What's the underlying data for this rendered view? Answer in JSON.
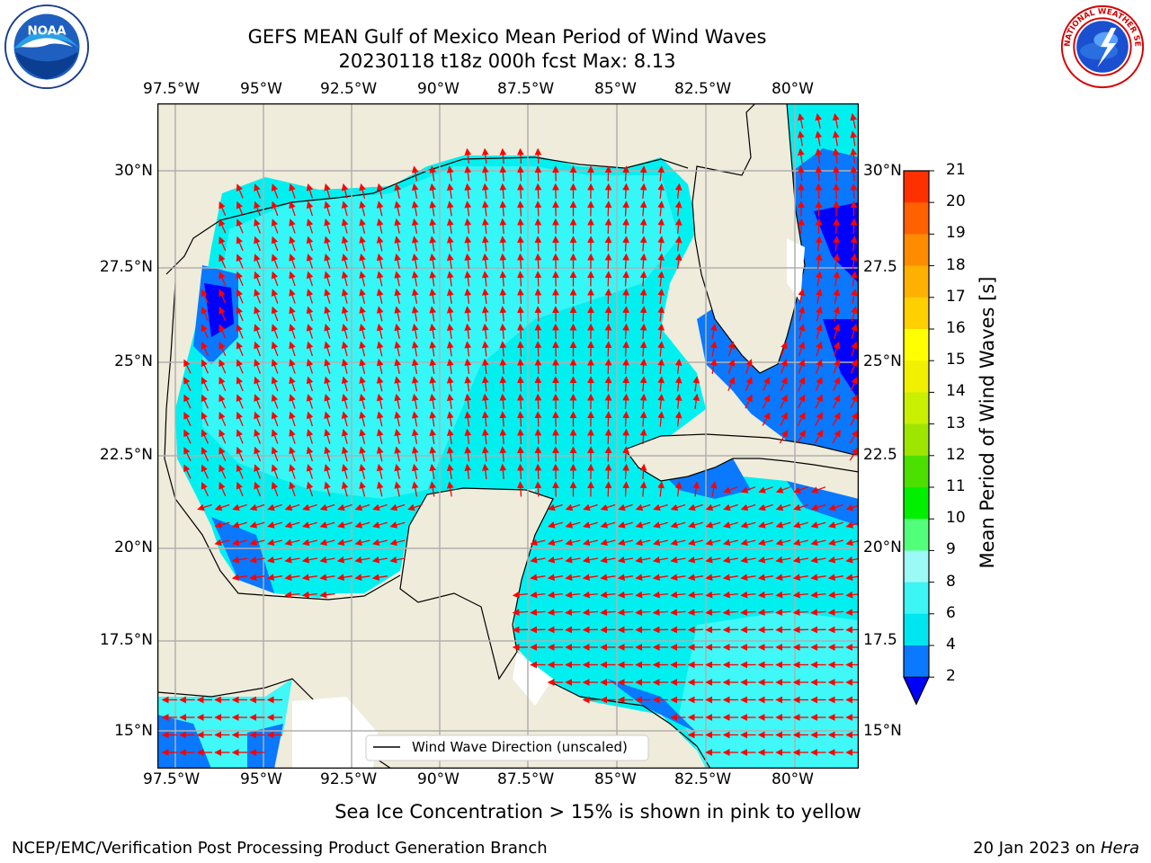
{
  "header": {
    "title_line1": "GEFS MEAN Gulf of Mexico Mean Period of Wind Waves",
    "title_line2": "20230118 t18z 000h fcst   Max: 8.13"
  },
  "logos": {
    "left": {
      "name": "noaa-logo",
      "text": "NOAA",
      "ring_text": "NATIONAL OCEANIC AND ATMOSPHERIC ADMINISTRATION · U.S. DEPARTMENT OF COMMERCE"
    },
    "right": {
      "name": "nws-logo",
      "ring_text": "NATIONAL WEATHER SERVICE"
    }
  },
  "map": {
    "lon_labels": [
      "97.5°W",
      "95°W",
      "92.5°W",
      "90°W",
      "87.5°W",
      "85°W",
      "82.5°W",
      "80°W"
    ],
    "lat_labels_left": [
      "30°N",
      "27.5°N",
      "25°N",
      "22.5°N",
      "20°N",
      "17.5°N",
      "15°N"
    ],
    "lat_labels_right": [
      "30°N",
      "27.5",
      "25°N",
      "22.5",
      "20°N",
      "17.5",
      "15°N"
    ],
    "legend_label": "Wind Wave Direction (unscaled)",
    "colors": {
      "land": "#efecdb",
      "arrow": "#ff0000",
      "grid": "#b0b0b0"
    }
  },
  "colorbar": {
    "label": "Mean Period of Wind Waves [s]",
    "ticks": [
      "2",
      "4",
      "6",
      "8",
      "9",
      "10",
      "11",
      "12",
      "13",
      "14",
      "15",
      "16",
      "17",
      "18",
      "19",
      "20",
      "21"
    ],
    "colors": [
      "#0a78ff",
      "#00e6f0",
      "#3cf5f5",
      "#9bfaf5",
      "#52ff7a",
      "#00f000",
      "#4ce000",
      "#9ee600",
      "#c8f000",
      "#f0f000",
      "#ffff00",
      "#ffd000",
      "#ffb000",
      "#ff8c00",
      "#ff6000",
      "#ff3000",
      "#ff0000"
    ],
    "under_color": "#0000ff"
  },
  "notes": {
    "ice": "Sea Ice Concentration > 15% is shown in pink to yellow"
  },
  "footer": {
    "left": "NCEP/EMC/Verification Post Processing Product Generation Branch",
    "right_date": "20 Jan 2023 on ",
    "right_host": "Hera"
  }
}
